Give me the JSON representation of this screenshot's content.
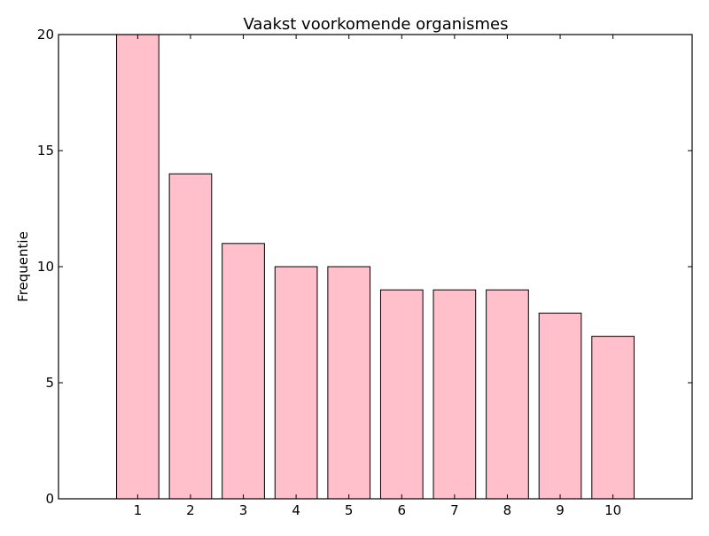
{
  "chart_data": {
    "type": "bar",
    "title": "Vaakst voorkomende organismes",
    "xlabel": "",
    "ylabel": "Frequentie",
    "categories": [
      "1",
      "2",
      "3",
      "4",
      "5",
      "6",
      "7",
      "8",
      "9",
      "10"
    ],
    "values": [
      20,
      14,
      11,
      10,
      10,
      9,
      9,
      9,
      8,
      7
    ],
    "xlim": [
      -1.5,
      10.5
    ],
    "ylim": [
      0,
      20
    ],
    "yticks": [
      0,
      5,
      10,
      15,
      20
    ],
    "grid": false,
    "legend": "none",
    "bar_color": "#ffc0cb",
    "edge_color": "#000000"
  }
}
